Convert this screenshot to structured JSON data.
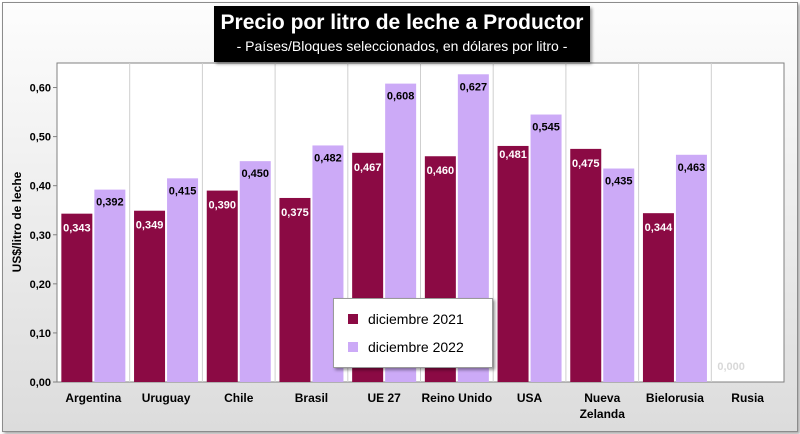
{
  "chart_data": {
    "type": "bar",
    "title": "Precio por litro de leche a Productor",
    "subtitle": "- Países/Bloques seleccionados, en dólares por litro -",
    "ylabel": "US$/litro de leche",
    "xlabel": "",
    "ylim": [
      0,
      0.65
    ],
    "yticks": [
      "0,00",
      "0,10",
      "0,20",
      "0,30",
      "0,40",
      "0,50",
      "0,60"
    ],
    "categories": [
      "Argentina",
      "Uruguay",
      "Chile",
      "Brasil",
      "UE 27",
      "Reino Unido",
      "USA",
      "Nueva Zelanda",
      "Bielorusia",
      "Rusia"
    ],
    "category_lines": [
      [
        "Argentina"
      ],
      [
        "Uruguay"
      ],
      [
        "Chile"
      ],
      [
        "Brasil"
      ],
      [
        "UE 27"
      ],
      [
        "Reino Unido"
      ],
      [
        "USA"
      ],
      [
        "Nueva",
        "Zelanda"
      ],
      [
        "Bielorusia"
      ],
      [
        "Rusia"
      ]
    ],
    "series": [
      {
        "name": "diciembre 2021",
        "color": "#8b0a44",
        "values": [
          0.343,
          0.349,
          0.39,
          0.375,
          0.467,
          0.46,
          0.481,
          0.475,
          0.344,
          0.0
        ],
        "labels": [
          "0,343",
          "0,349",
          "0,390",
          "0,375",
          "0,467",
          "0,460",
          "0,481",
          "0,475",
          "0,344",
          "0,000"
        ]
      },
      {
        "name": "diciembre 2022",
        "color": "#ccaaf7",
        "values": [
          0.392,
          0.415,
          0.45,
          0.482,
          0.608,
          0.627,
          0.545,
          0.435,
          0.463,
          null
        ],
        "labels": [
          "0,392",
          "0,415",
          "0,450",
          "0,482",
          "0,608",
          "0,627",
          "0,545",
          "0,435",
          "0,463",
          ""
        ]
      }
    ],
    "legend_position": "center-bottom",
    "grid": "vertical category separators"
  }
}
